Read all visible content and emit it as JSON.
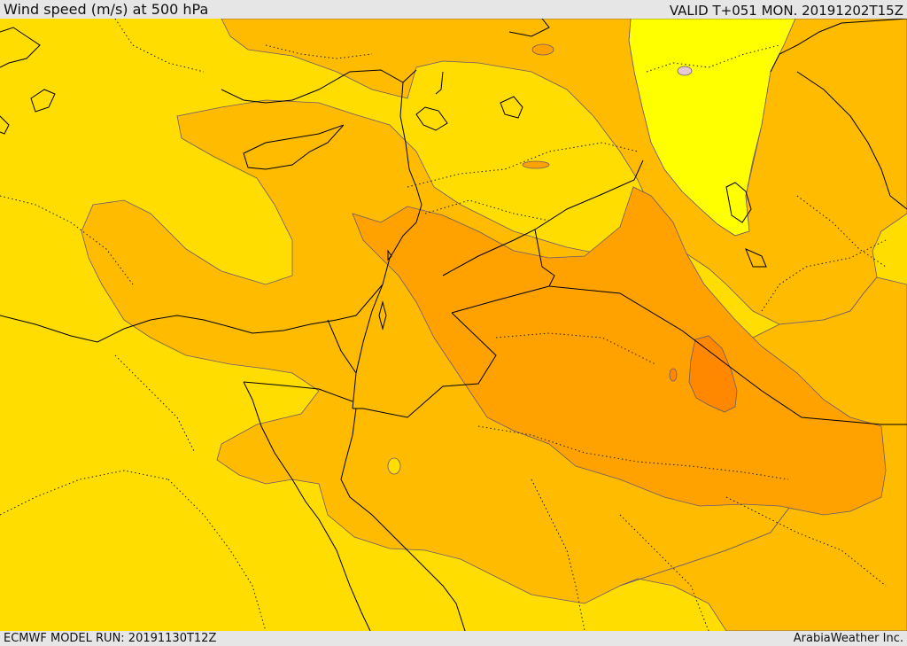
{
  "header": {
    "title": "Wind speed (m/s) at 500 hPa",
    "valid": "VALID T+051 MON. 20191202T15Z"
  },
  "footer": {
    "model_run": "ECMWF MODEL RUN: 20191130T12Z",
    "brand": "ArabiaWeather Inc."
  },
  "colors": {
    "band_lightest": "#ffff00",
    "band_light": "#ffdd00",
    "band_mid": "#ffbb00",
    "band_strong": "#ffa200",
    "band_strongest": "#ff8800",
    "water_low": "#e6c8d2",
    "coastline": "#000000",
    "border": "#000000",
    "contour": "#6b5a6b"
  }
}
